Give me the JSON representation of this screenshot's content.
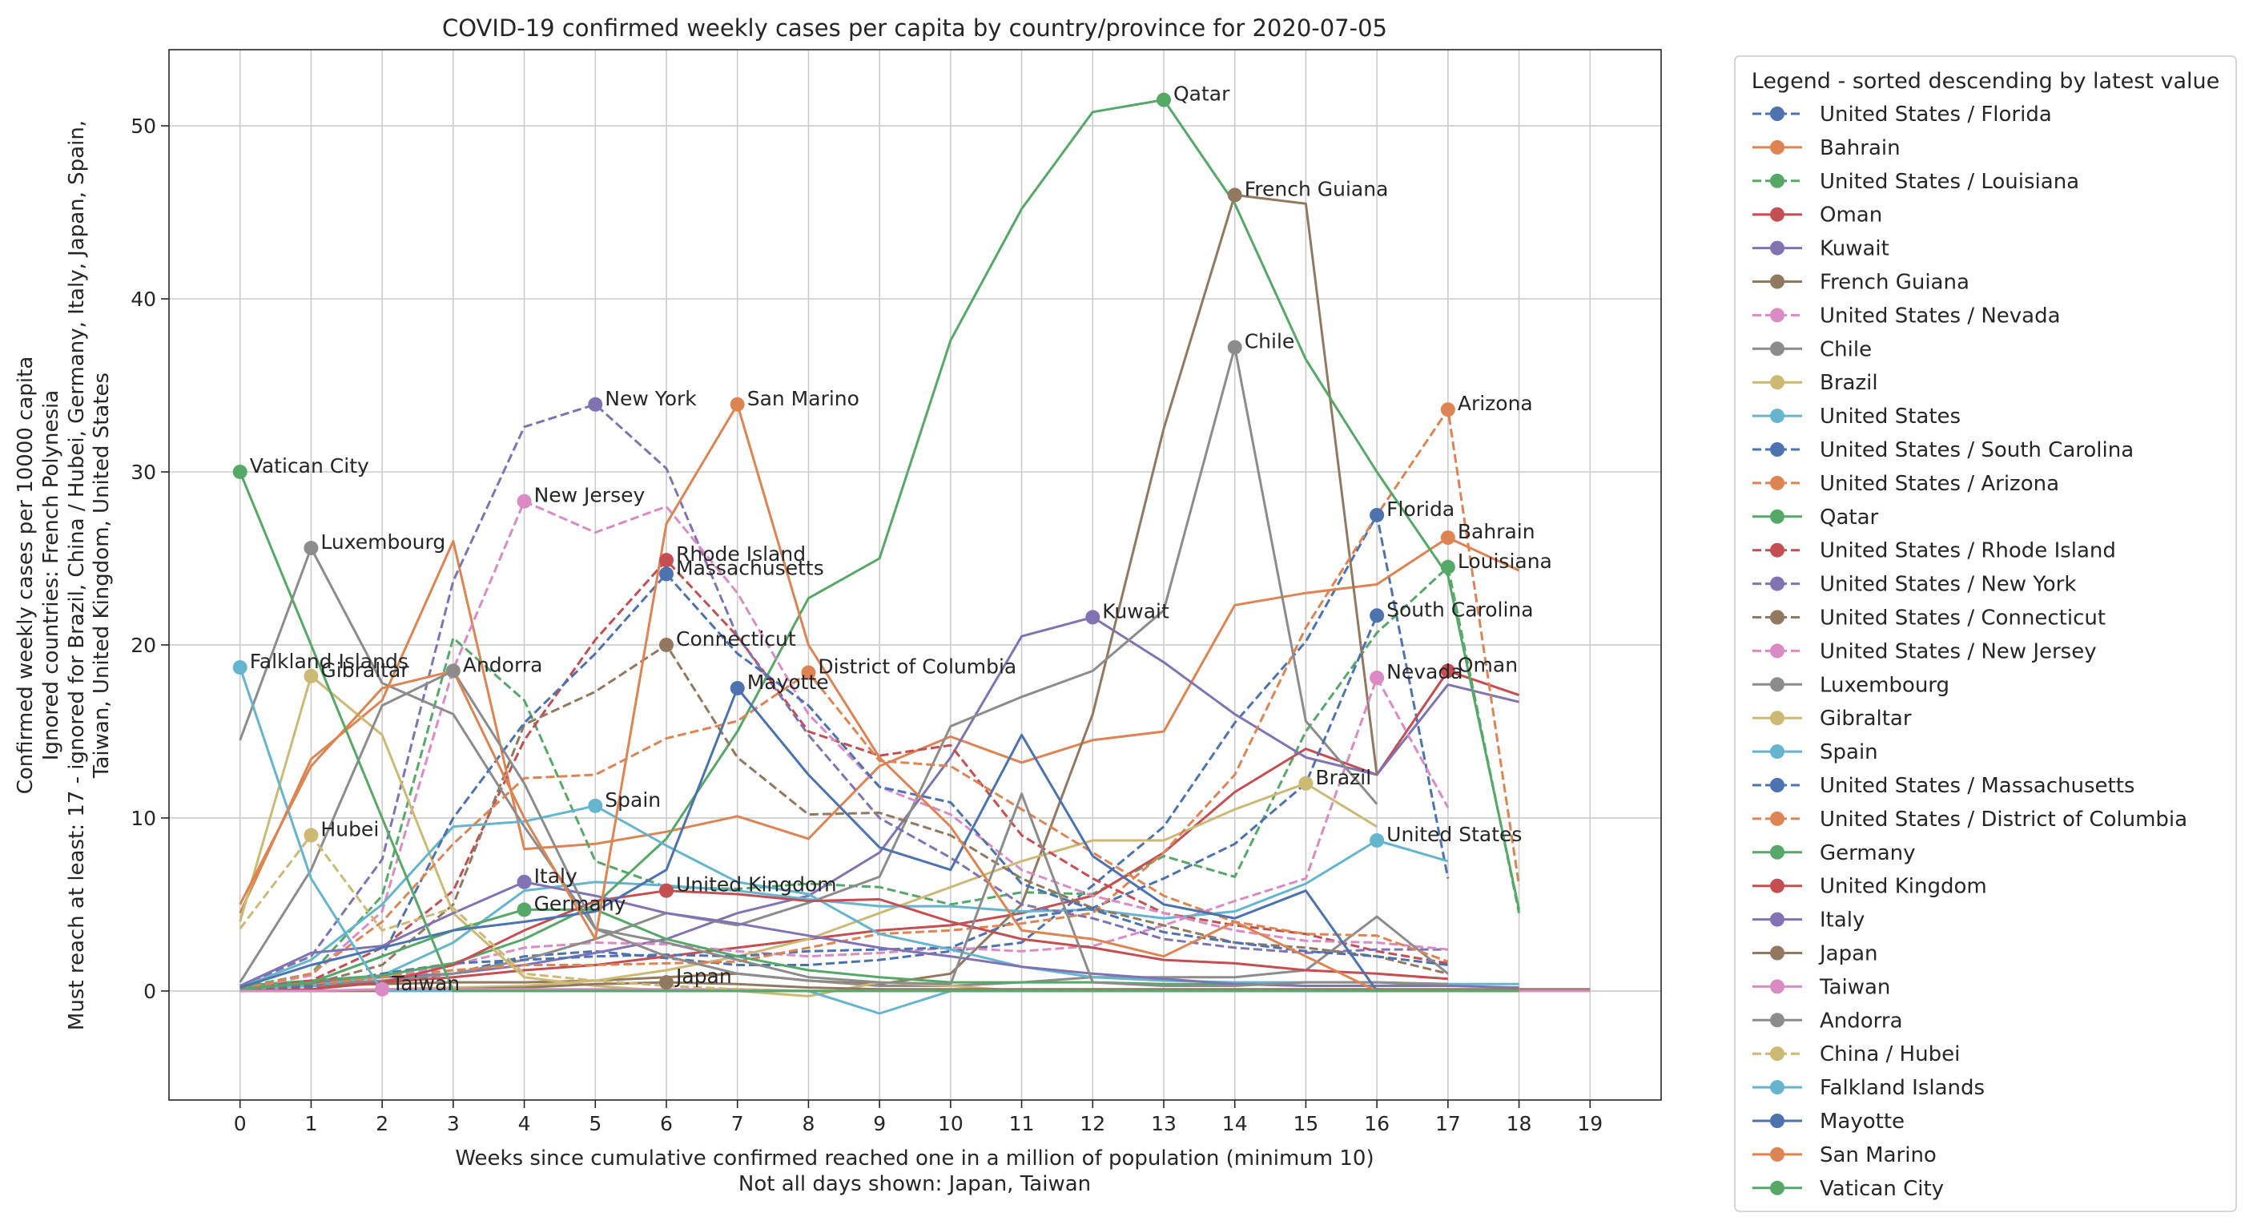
{
  "chart_data": {
    "type": "line",
    "title": "COVID-19 confirmed weekly cases per capita by country/province for 2020-07-05",
    "xlabel": "Weeks since cumulative confirmed reached one in a million of population (minimum 10)",
    "xlabel_note": "Not all days shown: Japan, Taiwan",
    "ylabel_lines": [
      "Must reach at least: 17 - ignored for Brazil, China / Hubei, Germany, Italy, Japan, Spain,",
      "Taiwan, United Kingdom, United States",
      "Ignored countries: French Polynesia",
      "Confirmed weekly cases per 10000 capita"
    ],
    "xlim": [
      -1,
      20
    ],
    "ylim": [
      -6.3,
      54.4
    ],
    "xticks": [
      0,
      1,
      2,
      3,
      4,
      5,
      6,
      7,
      8,
      9,
      10,
      11,
      12,
      13,
      14,
      15,
      16,
      17,
      18,
      19
    ],
    "yticks": [
      0,
      10,
      20,
      30,
      40,
      50
    ],
    "grid": true,
    "legend_title": "Legend - sorted descending by latest value",
    "legend_position": "outside-right",
    "series": [
      {
        "name": "United States / Florida",
        "color": "#4c72b0",
        "dash": true,
        "peak_label": "Florida",
        "values": [
          0.1,
          0.2,
          0.5,
          1.0,
          2.0,
          2.3,
          1.9,
          1.5,
          1.5,
          1.8,
          2.3,
          2.8,
          6.1,
          9.5,
          15.5,
          20.2,
          27.5,
          6.5,
          null,
          null
        ]
      },
      {
        "name": "Bahrain",
        "color": "#dd8452",
        "dash": false,
        "peak_label": "Bahrain",
        "values": [
          4.5,
          13.4,
          16.8,
          26.0,
          8.2,
          8.5,
          9.2,
          10.1,
          8.8,
          13.0,
          14.7,
          13.2,
          14.5,
          15.0,
          22.3,
          23.0,
          23.5,
          26.2,
          24.3,
          null
        ]
      },
      {
        "name": "United States / Louisiana",
        "color": "#55a868",
        "dash": true,
        "peak_label": "Louisiana",
        "values": [
          0.2,
          1.0,
          5.5,
          20.4,
          16.8,
          7.5,
          6.0,
          5.9,
          6.2,
          6.0,
          5.0,
          5.7,
          5.6,
          7.8,
          6.6,
          15.0,
          20.7,
          24.5,
          4.5,
          null
        ]
      },
      {
        "name": "Oman",
        "color": "#c44e52",
        "dash": false,
        "peak_label": "Oman",
        "values": [
          0.1,
          0.3,
          0.5,
          0.8,
          1.2,
          1.5,
          2.0,
          2.5,
          3.0,
          3.5,
          3.8,
          4.5,
          5.5,
          8.0,
          11.5,
          14.0,
          12.5,
          18.5,
          17.1,
          null
        ]
      },
      {
        "name": "Kuwait",
        "color": "#8172b3",
        "dash": false,
        "peak_label": "Kuwait",
        "values": [
          0.1,
          0.5,
          0.8,
          1.0,
          1.5,
          2.2,
          3.0,
          4.5,
          5.5,
          8.0,
          13.5,
          20.5,
          21.6,
          19.0,
          16.0,
          13.5,
          12.5,
          17.7,
          16.7,
          null
        ]
      },
      {
        "name": "French Guiana",
        "color": "#937860",
        "dash": false,
        "peak_label": "French Guiana",
        "values": [
          0.2,
          0.3,
          0.4,
          0.5,
          0.5,
          0.6,
          0.8,
          1.0,
          0.6,
          0.4,
          1.0,
          5.0,
          16.0,
          32.5,
          46.0,
          45.5,
          12.5,
          null,
          null,
          null
        ]
      },
      {
        "name": "United States / Nevada",
        "color": "#da8bc3",
        "dash": true,
        "peak_label": "Nevada",
        "values": [
          0.1,
          0.3,
          0.8,
          1.5,
          2.5,
          2.8,
          2.7,
          2.3,
          2.0,
          2.2,
          2.5,
          2.3,
          2.6,
          3.8,
          5.2,
          6.5,
          18.1,
          10.6,
          null,
          null
        ]
      },
      {
        "name": "Chile",
        "color": "#8c8c8c",
        "dash": false,
        "peak_label": "Chile",
        "values": [
          0.2,
          0.4,
          0.6,
          1.0,
          1.8,
          3.0,
          4.5,
          3.8,
          5.1,
          6.6,
          15.3,
          17.0,
          18.5,
          22.0,
          37.2,
          15.6,
          10.8,
          null,
          null,
          null
        ]
      },
      {
        "name": "Brazil",
        "color": "#ccb974",
        "dash": false,
        "peak_label": "Brazil",
        "values": [
          0.0,
          0.0,
          0.1,
          0.2,
          0.3,
          0.6,
          1.2,
          2.0,
          3.0,
          4.5,
          6.0,
          7.5,
          8.7,
          8.7,
          10.5,
          12.0,
          9.5,
          null,
          null,
          null
        ]
      },
      {
        "name": "United States",
        "color": "#64b5cd",
        "dash": false,
        "peak_label": "United States",
        "values": [
          0.1,
          0.3,
          0.9,
          2.8,
          5.8,
          6.3,
          6.1,
          5.8,
          5.3,
          4.9,
          4.9,
          4.6,
          4.7,
          4.2,
          4.6,
          6.2,
          8.7,
          7.5,
          null,
          null
        ]
      },
      {
        "name": "United States / South Carolina",
        "color": "#4c72b0",
        "dash": true,
        "peak_label": "South Carolina",
        "values": [
          0.1,
          0.3,
          1.0,
          1.6,
          1.8,
          2.0,
          2.1,
          2.0,
          2.3,
          2.4,
          2.5,
          4.2,
          4.8,
          6.5,
          8.5,
          12.0,
          21.7,
          null,
          null,
          null
        ]
      },
      {
        "name": "United States / Arizona",
        "color": "#dd8452",
        "dash": true,
        "peak_label": "Arizona",
        "values": [
          0.1,
          0.4,
          0.8,
          1.2,
          1.5,
          1.5,
          1.6,
          1.7,
          2.5,
          3.3,
          3.5,
          3.9,
          4.5,
          8.0,
          12.5,
          21.0,
          27.5,
          33.6,
          6.1,
          null
        ]
      },
      {
        "name": "Qatar",
        "color": "#55a868",
        "dash": false,
        "peak_label": "Qatar",
        "values": [
          0.3,
          0.6,
          0.9,
          1.6,
          3.0,
          5.0,
          8.8,
          15.0,
          22.7,
          25.0,
          37.6,
          45.2,
          50.8,
          51.5,
          45.5,
          36.5,
          30.0,
          24.0,
          4.7,
          null
        ]
      },
      {
        "name": "United States / Rhode Island",
        "color": "#c44e52",
        "dash": true,
        "peak_label": "Rhode Island",
        "values": [
          0.1,
          0.6,
          2.5,
          5.8,
          14.5,
          20.3,
          24.9,
          20.5,
          15.0,
          13.6,
          14.2,
          9.0,
          6.5,
          4.5,
          3.8,
          3.3,
          2.3,
          1.6,
          null,
          null
        ]
      },
      {
        "name": "United States / New York",
        "color": "#8172b3",
        "dash": true,
        "peak_label": "New York",
        "values": [
          0.3,
          2.0,
          7.6,
          23.7,
          32.6,
          33.9,
          30.2,
          20.5,
          14.8,
          10.0,
          7.7,
          5.0,
          4.2,
          3.0,
          2.5,
          2.2,
          2.4,
          2.4,
          null,
          null
        ]
      },
      {
        "name": "United States / Connecticut",
        "color": "#937860",
        "dash": true,
        "peak_label": "Connecticut",
        "values": [
          0.1,
          0.4,
          1.5,
          5.0,
          15.4,
          17.3,
          20.0,
          13.5,
          10.2,
          10.3,
          9.0,
          6.5,
          4.8,
          3.8,
          2.8,
          2.5,
          2.0,
          1.0,
          null,
          null
        ]
      },
      {
        "name": "United States / New Jersey",
        "color": "#da8bc3",
        "dash": true,
        "peak_label": "New Jersey",
        "values": [
          0.1,
          0.9,
          4.6,
          18.6,
          28.3,
          26.5,
          28.0,
          23.0,
          16.0,
          11.8,
          10.2,
          7.0,
          5.5,
          4.5,
          3.5,
          2.9,
          2.8,
          2.4,
          null,
          null
        ]
      },
      {
        "name": "Luxembourg",
        "color": "#8c8c8c",
        "dash": false,
        "peak_label": "Luxembourg",
        "values": [
          14.5,
          25.6,
          17.8,
          16.0,
          9.5,
          3.6,
          2.0,
          1.0,
          0.6,
          0.3,
          0.3,
          0.5,
          0.8,
          0.8,
          0.8,
          1.2,
          4.3,
          1.0,
          null,
          null
        ]
      },
      {
        "name": "Gibraltar",
        "color": "#ccb974",
        "dash": false,
        "peak_label": "Gibraltar",
        "values": [
          4.0,
          18.2,
          14.8,
          4.5,
          0.8,
          0.3,
          0.0,
          0.0,
          -0.3,
          0.5,
          0.3,
          0.0,
          0.0,
          0.0,
          0.0,
          0.0,
          0.0,
          0.0,
          null,
          null
        ]
      },
      {
        "name": "Spain",
        "color": "#64b5cd",
        "dash": false,
        "peak_label": "Spain",
        "values": [
          0.2,
          1.8,
          5.0,
          9.5,
          9.8,
          10.7,
          8.4,
          6.3,
          5.6,
          3.3,
          2.4,
          1.4,
          0.8,
          0.6,
          0.5,
          0.5,
          0.5,
          0.4,
          0.4,
          null
        ]
      },
      {
        "name": "United States / Massachusetts",
        "color": "#4c72b0",
        "dash": true,
        "peak_label": "Massachusetts",
        "values": [
          0.1,
          0.5,
          2.0,
          10.0,
          15.5,
          19.5,
          24.1,
          19.5,
          16.5,
          11.8,
          10.9,
          6.2,
          4.7,
          3.4,
          2.8,
          2.3,
          2.0,
          1.5,
          null,
          null
        ]
      },
      {
        "name": "United States / District of Columbia",
        "color": "#dd8452",
        "dash": true,
        "peak_label": "District of Columbia",
        "values": [
          0.1,
          1.0,
          4.0,
          8.5,
          12.3,
          12.5,
          14.6,
          15.6,
          18.4,
          13.3,
          13.0,
          10.5,
          8.0,
          5.5,
          4.0,
          3.3,
          3.2,
          1.7,
          null,
          null
        ]
      },
      {
        "name": "Germany",
        "color": "#55a868",
        "dash": false,
        "peak_label": "Germany",
        "values": [
          0.1,
          0.5,
          2.0,
          3.5,
          4.7,
          4.7,
          3.0,
          2.0,
          1.2,
          0.8,
          0.5,
          0.5,
          0.5,
          0.4,
          0.4,
          0.3,
          0.3,
          0.4,
          null,
          null
        ]
      },
      {
        "name": "United Kingdom",
        "color": "#c44e52",
        "dash": false,
        "peak_label": "United Kingdom",
        "values": [
          0.0,
          0.1,
          0.5,
          1.5,
          3.5,
          5.2,
          5.8,
          5.6,
          5.2,
          5.3,
          4.0,
          3.0,
          2.5,
          1.8,
          1.6,
          1.2,
          1.0,
          0.7,
          null,
          null
        ]
      },
      {
        "name": "Italy",
        "color": "#8172b3",
        "dash": false,
        "peak_label": "Italy",
        "values": [
          0.3,
          2.2,
          2.6,
          4.5,
          6.3,
          5.5,
          4.5,
          3.9,
          3.2,
          2.5,
          2.0,
          1.4,
          1.0,
          0.7,
          0.4,
          0.3,
          0.3,
          0.3,
          0.2,
          null
        ]
      },
      {
        "name": "Japan",
        "color": "#937860",
        "dash": false,
        "peak_label": "Japan",
        "values": [
          0.0,
          0.0,
          0.0,
          0.1,
          0.2,
          0.4,
          0.5,
          0.4,
          0.2,
          0.1,
          0.1,
          0.1,
          0.1,
          0.1,
          0.1,
          0.1,
          0.1,
          0.1,
          0.1,
          0.1
        ]
      },
      {
        "name": "Taiwan",
        "color": "#da8bc3",
        "dash": false,
        "peak_label": "Taiwan",
        "values": [
          0.0,
          0.0,
          0.1,
          0.1,
          0.1,
          0.1,
          0.1,
          0.1,
          0.0,
          0.0,
          0.0,
          0.0,
          0.0,
          0.0,
          0.0,
          0.0,
          0.0,
          0.0,
          0.0,
          0.0
        ]
      },
      {
        "name": "Andorra",
        "color": "#8c8c8c",
        "dash": false,
        "peak_label": "Andorra",
        "values": [
          0.5,
          7.0,
          16.5,
          18.5,
          12.0,
          3.6,
          2.8,
          1.8,
          0.8,
          0.5,
          0.4,
          11.4,
          0.5,
          0.3,
          0.3,
          0.5,
          0.5,
          0.4,
          null,
          null
        ]
      },
      {
        "name": "China / Hubei",
        "color": "#ccb974",
        "dash": true,
        "peak_label": "Hubei",
        "values": [
          3.6,
          9.0,
          3.5,
          4.8,
          1.0,
          0.6,
          0.3,
          0.1,
          0.0,
          0.0,
          0.0,
          0.0,
          0.0,
          0.0,
          0.0,
          0.0,
          0.0,
          0.0,
          null,
          null
        ]
      },
      {
        "name": "Falkland Islands",
        "color": "#64b5cd",
        "dash": false,
        "peak_label": "Falkland Islands",
        "values": [
          18.7,
          6.5,
          0.0,
          0.0,
          0.0,
          0.0,
          0.0,
          0.0,
          0.0,
          -1.3,
          0.0,
          0.0,
          0.0,
          0.0,
          0.0,
          0.0,
          0.0,
          0.0,
          null,
          null
        ]
      },
      {
        "name": "Mayotte",
        "color": "#4c72b0",
        "dash": false,
        "peak_label": "Mayotte",
        "values": [
          0.2,
          1.5,
          2.5,
          3.5,
          4.0,
          4.6,
          7.0,
          17.5,
          12.5,
          8.3,
          7.0,
          14.8,
          7.8,
          5.0,
          4.2,
          5.8,
          0.0,
          null,
          null,
          null
        ]
      },
      {
        "name": "San Marino",
        "color": "#dd8452",
        "dash": false,
        "peak_label": "San Marino",
        "values": [
          5.0,
          13.0,
          17.5,
          18.5,
          10.0,
          3.0,
          27.0,
          33.9,
          20.0,
          13.5,
          9.5,
          3.5,
          3.0,
          2.0,
          4.0,
          2.0,
          0.0,
          0.0,
          0.0,
          null
        ]
      },
      {
        "name": "Vatican City",
        "color": "#55a868",
        "dash": false,
        "peak_label": "Vatican City",
        "values": [
          30.0,
          20.0,
          10.0,
          0.0,
          0.0,
          0.0,
          0.0,
          0.0,
          0.0,
          0.0,
          0.0,
          0.0,
          0.0,
          0.0,
          0.0,
          0.0,
          0.0,
          0.0,
          0.0,
          null
        ]
      }
    ]
  }
}
